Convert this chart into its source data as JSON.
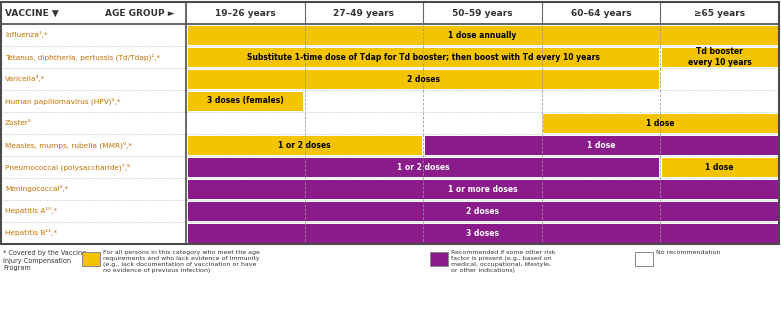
{
  "age_columns": [
    "19-26 years",
    "27-49 years",
    "50-59 years",
    "60-64 years",
    ">=65 years"
  ],
  "age_columns_display": [
    "19–26 years",
    "27–49 years",
    "50–59 years",
    "60–64 years",
    "≥65 years"
  ],
  "vaccine_header": "VACCINE",
  "age_group_header": "AGE GROUP",
  "rows": [
    {
      "label": "Influenza¹,*",
      "segments": [
        {
          "start": 0,
          "end": 5,
          "color": "#F5C400",
          "text": "1 dose annually",
          "text_color": "#000000"
        }
      ]
    },
    {
      "label": "Tetanus, diphtheria, pertussis (Td/Tdap)²,*",
      "segments": [
        {
          "start": 0,
          "end": 4,
          "color": "#F5C400",
          "text": "Substitute 1-time dose of Tdap for Td booster; then boost with Td every 10 years",
          "text_color": "#000000"
        },
        {
          "start": 4,
          "end": 5,
          "color": "#F5C400",
          "text": "Td booster\nevery 10 years",
          "text_color": "#000000"
        }
      ]
    },
    {
      "label": "Varicella³,*",
      "segments": [
        {
          "start": 0,
          "end": 4,
          "color": "#F5C400",
          "text": "2 doses",
          "text_color": "#000000"
        },
        {
          "start": 4,
          "end": 5,
          "color": "#FFFFFF",
          "text": "",
          "text_color": "#000000"
        }
      ]
    },
    {
      "label": "Human papillomavirus (HPV)⁴,*",
      "segments": [
        {
          "start": 0,
          "end": 1,
          "color": "#F5C400",
          "text": "3 doses (females)",
          "text_color": "#000000"
        },
        {
          "start": 1,
          "end": 5,
          "color": "#FFFFFF",
          "text": "",
          "text_color": "#000000"
        }
      ]
    },
    {
      "label": "Zoster⁵",
      "segments": [
        {
          "start": 0,
          "end": 3,
          "color": "#FFFFFF",
          "text": "",
          "text_color": "#000000"
        },
        {
          "start": 3,
          "end": 5,
          "color": "#F5C400",
          "text": "1 dose",
          "text_color": "#000000"
        }
      ]
    },
    {
      "label": "Measles, mumps, rubella (MMR)⁶,*",
      "segments": [
        {
          "start": 0,
          "end": 2,
          "color": "#F5C400",
          "text": "1 or 2 doses",
          "text_color": "#000000"
        },
        {
          "start": 2,
          "end": 5,
          "color": "#8B1A8B",
          "text": "1 dose",
          "text_color": "#FFFFFF"
        }
      ]
    },
    {
      "label": "Pneumococcal (polysaccharide)⁷,⁸",
      "segments": [
        {
          "start": 0,
          "end": 4,
          "color": "#8B1A8B",
          "text": "1 or 2 doses",
          "text_color": "#FFFFFF"
        },
        {
          "start": 4,
          "end": 5,
          "color": "#F5C400",
          "text": "1 dose",
          "text_color": "#000000"
        }
      ]
    },
    {
      "label": "Meningococcal⁹,*",
      "segments": [
        {
          "start": 0,
          "end": 5,
          "color": "#8B1A8B",
          "text": "1 or more doses",
          "text_color": "#FFFFFF"
        }
      ]
    },
    {
      "label": "Hepatitis A¹⁰,*",
      "segments": [
        {
          "start": 0,
          "end": 5,
          "color": "#8B1A8B",
          "text": "2 doses",
          "text_color": "#FFFFFF"
        }
      ]
    },
    {
      "label": "Hepatitis B¹¹,*",
      "segments": [
        {
          "start": 0,
          "end": 5,
          "color": "#8B1A8B",
          "text": "3 doses",
          "text_color": "#FFFFFF"
        }
      ]
    }
  ],
  "yellow": "#F5C400",
  "purple": "#8B1A8B",
  "white": "#FFFFFF",
  "border_dark": "#4A4A4A",
  "border_light": "#999999",
  "label_color": "#C87000",
  "footnote": "* Covered by the Vaccine\nInjury Compensation\nProgram",
  "legend_yellow_text": "For all persons in this category who meet the age\nrequirements and who lack evidence of immunity\n(e.g., lack documentation of vaccination or have\nno evidence of previous infection)",
  "legend_purple_text": "Recommended if some other risk\nfactor is present (e.g., based on\nmedical, occupational, lifestyle,\nor other indications)",
  "legend_white_text": "No recommendation"
}
